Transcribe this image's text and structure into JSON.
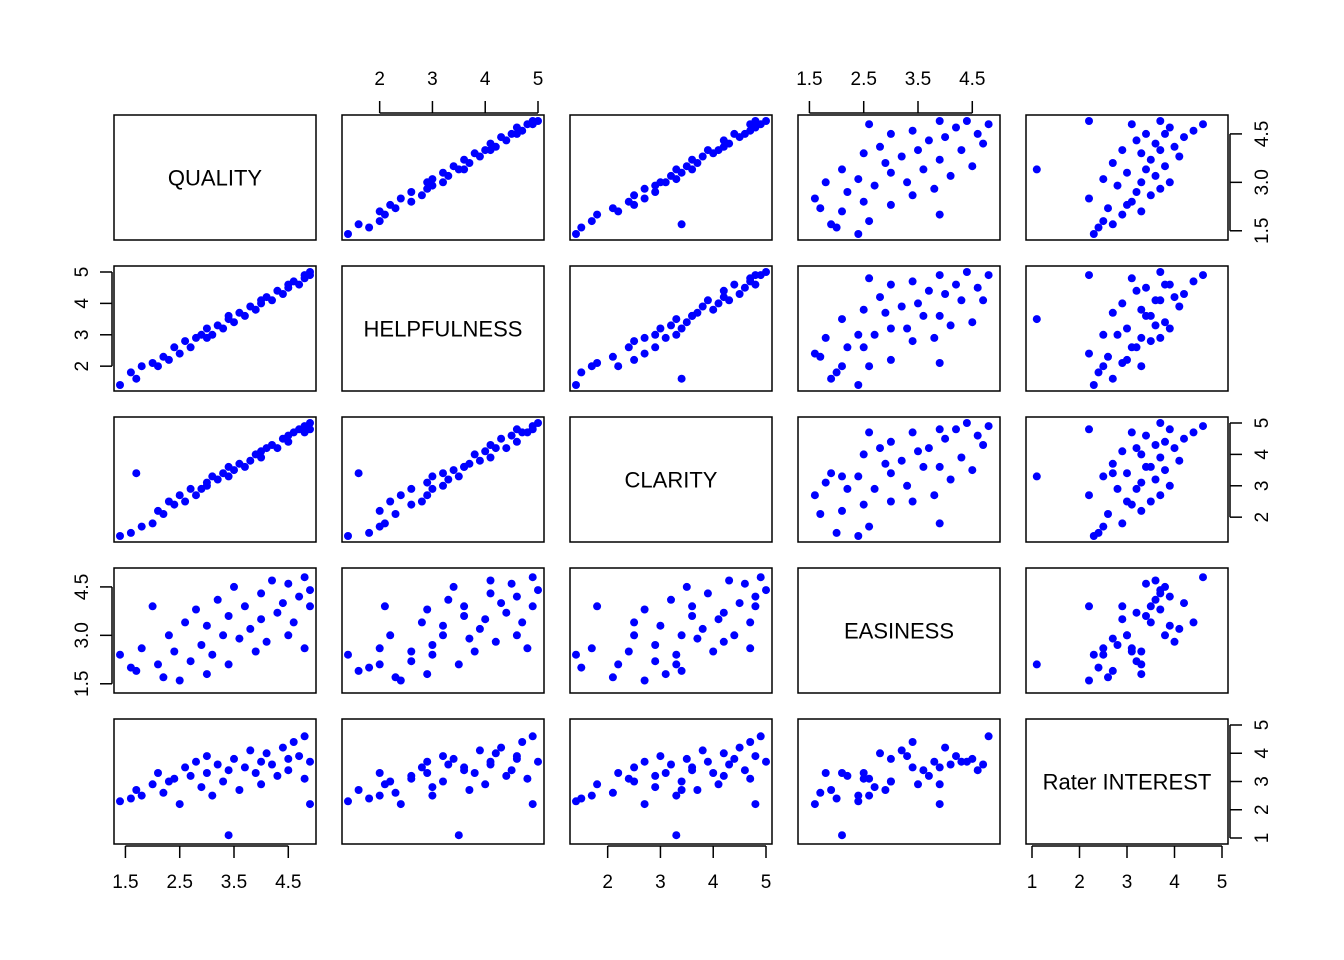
{
  "chart_data": {
    "type": "scatter",
    "kind": "pairs-scatterplot-matrix",
    "point_color": "#0000ff",
    "variables": [
      {
        "name": "QUALITY",
        "range": [
          1.4,
          4.9
        ],
        "ticks": [
          1.5,
          2.5,
          3.5,
          4.5
        ],
        "tick_labels": [
          "1.5",
          "2.5",
          "3.5",
          "4.5"
        ]
      },
      {
        "name": "HELPFULNESS",
        "range": [
          1.4,
          5.0
        ],
        "ticks": [
          2,
          3,
          4,
          5
        ],
        "tick_labels": [
          "2",
          "3",
          "4",
          "5"
        ]
      },
      {
        "name": "CLARITY",
        "range": [
          1.4,
          5.0
        ],
        "ticks": [
          2,
          3,
          4,
          5
        ],
        "tick_labels": [
          "2",
          "3",
          "4",
          "5"
        ]
      },
      {
        "name": "EASINESS",
        "range": [
          1.4,
          4.9
        ],
        "ticks": [
          1.5,
          2.5,
          3.5,
          4.5
        ],
        "tick_labels": [
          "1.5",
          "2.5",
          "3.5",
          "4.5"
        ]
      },
      {
        "name": "Rater INTEREST",
        "range": [
          1.0,
          5.0
        ],
        "ticks": [
          1,
          2,
          3,
          4,
          5
        ],
        "tick_labels": [
          "1",
          "2",
          "3",
          "4",
          "5"
        ]
      }
    ],
    "outer_axes": {
      "top": [
        {
          "column": 1,
          "ticks": [
            2,
            3,
            4,
            5
          ],
          "tick_labels": [
            "2",
            "3",
            "4",
            "5"
          ]
        },
        {
          "column": 3,
          "ticks": [
            1.5,
            2.5,
            3.5,
            4.5
          ],
          "tick_labels": [
            "1.5",
            "2.5",
            "3.5",
            "4.5"
          ]
        }
      ],
      "bottom": [
        {
          "column": 0,
          "ticks": [
            1.5,
            2.5,
            3.5,
            4.5
          ],
          "tick_labels": [
            "1.5",
            "2.5",
            "3.5",
            "4.5"
          ]
        },
        {
          "column": 2,
          "ticks": [
            2,
            3,
            4,
            5
          ],
          "tick_labels": [
            "2",
            "3",
            "4",
            "5"
          ]
        },
        {
          "column": 4,
          "ticks": [
            1,
            2,
            3,
            4,
            5
          ],
          "tick_labels": [
            "1",
            "2",
            "3",
            "4",
            "5"
          ]
        }
      ],
      "left": [
        {
          "row": 1,
          "ticks": [
            2,
            3,
            4,
            5
          ],
          "tick_labels": [
            "2",
            "3",
            "4",
            "5"
          ]
        },
        {
          "row": 3,
          "ticks": [
            1.5,
            3.0,
            4.5
          ],
          "tick_labels": [
            "1.5",
            "3.0",
            "4.5"
          ]
        }
      ],
      "right": [
        {
          "row": 0,
          "ticks": [
            1.5,
            3.0,
            4.5
          ],
          "tick_labels": [
            "1.5",
            "3.0",
            "4.5"
          ]
        },
        {
          "row": 2,
          "ticks": [
            2,
            3,
            4,
            5
          ],
          "tick_labels": [
            "2",
            "3",
            "4",
            "5"
          ]
        },
        {
          "row": 4,
          "ticks": [
            1,
            2,
            3,
            4,
            5
          ],
          "tick_labels": [
            "1",
            "2",
            "3",
            "4",
            "5"
          ]
        }
      ]
    },
    "observations": {
      "columns": [
        "QUALITY",
        "HELPFULNESS",
        "CLARITY",
        "EASINESS",
        "Rater INTEREST"
      ],
      "note_values": "approximate sample of the plotted observations",
      "rows": [
        [
          1.4,
          1.4,
          1.4,
          2.4,
          2.3
        ],
        [
          1.6,
          1.8,
          1.5,
          2.0,
          2.4
        ],
        [
          1.8,
          2.0,
          1.7,
          2.6,
          2.5
        ],
        [
          1.7,
          1.6,
          3.4,
          1.9,
          2.7
        ],
        [
          2.0,
          2.1,
          1.8,
          3.9,
          2.9
        ],
        [
          2.1,
          2.0,
          2.2,
          2.1,
          3.3
        ],
        [
          2.2,
          2.3,
          2.1,
          1.7,
          2.6
        ],
        [
          2.3,
          2.2,
          2.5,
          3.0,
          3.0
        ],
        [
          2.4,
          2.6,
          2.4,
          2.5,
          3.1
        ],
        [
          2.5,
          2.4,
          2.7,
          1.6,
          2.2
        ],
        [
          2.6,
          2.8,
          2.5,
          3.4,
          3.5
        ],
        [
          2.7,
          2.6,
          2.9,
          2.2,
          3.2
        ],
        [
          2.8,
          2.9,
          2.7,
          3.8,
          3.7
        ],
        [
          2.9,
          3.0,
          2.9,
          2.7,
          2.8
        ],
        [
          3.0,
          2.9,
          3.1,
          1.8,
          3.3
        ],
        [
          3.0,
          3.2,
          3.0,
          3.3,
          3.9
        ],
        [
          3.1,
          3.0,
          3.3,
          2.4,
          2.5
        ],
        [
          3.2,
          3.3,
          3.2,
          4.1,
          3.6
        ],
        [
          3.3,
          3.2,
          3.4,
          3.0,
          3.0
        ],
        [
          3.4,
          3.5,
          3.3,
          2.1,
          1.1
        ],
        [
          3.4,
          3.6,
          3.6,
          3.6,
          3.4
        ],
        [
          3.5,
          3.4,
          3.5,
          4.5,
          3.8
        ],
        [
          3.6,
          3.7,
          3.7,
          2.9,
          2.7
        ],
        [
          3.7,
          3.6,
          3.6,
          3.9,
          3.5
        ],
        [
          3.8,
          3.9,
          3.8,
          3.2,
          4.1
        ],
        [
          3.9,
          3.8,
          4.0,
          2.5,
          3.3
        ],
        [
          4.0,
          4.1,
          3.9,
          4.3,
          3.7
        ],
        [
          4.0,
          4.0,
          4.1,
          3.5,
          2.9
        ],
        [
          4.1,
          4.2,
          4.2,
          2.8,
          4.0
        ],
        [
          4.2,
          4.1,
          4.3,
          4.7,
          3.6
        ],
        [
          4.3,
          4.4,
          4.2,
          3.7,
          3.2
        ],
        [
          4.4,
          4.3,
          4.5,
          4.0,
          4.2
        ],
        [
          4.5,
          4.6,
          4.4,
          3.0,
          3.8
        ],
        [
          4.5,
          4.5,
          4.6,
          4.6,
          3.4
        ],
        [
          4.6,
          4.7,
          4.7,
          3.4,
          4.4
        ],
        [
          4.7,
          4.6,
          4.8,
          4.2,
          3.9
        ],
        [
          4.8,
          4.8,
          4.7,
          2.6,
          3.1
        ],
        [
          4.8,
          4.9,
          4.9,
          4.8,
          4.6
        ],
        [
          4.9,
          5.0,
          5.0,
          4.4,
          3.7
        ],
        [
          4.9,
          4.9,
          4.8,
          3.9,
          2.2
        ]
      ]
    },
    "grid": false,
    "legend": "none"
  }
}
